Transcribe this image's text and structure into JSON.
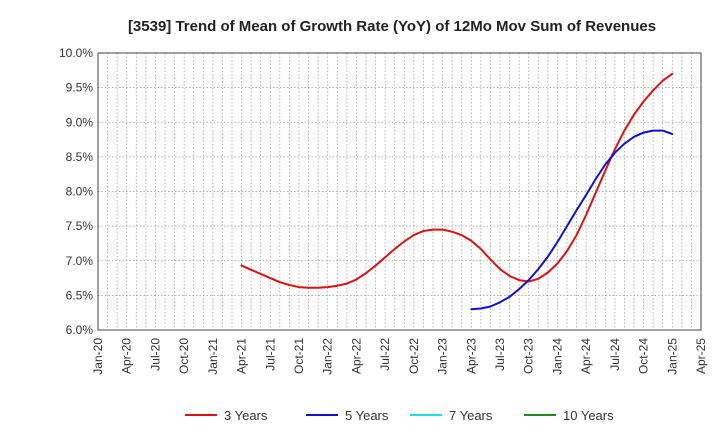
{
  "chart_data": {
    "type": "line",
    "title": "[3539]  Trend of Mean of Growth Rate (YoY) of 12Mo Mov Sum of Revenues",
    "xlabel": "",
    "ylabel": "",
    "ylim": [
      6.0,
      10.0
    ],
    "y_ticks": [
      "6.0%",
      "6.5%",
      "7.0%",
      "7.5%",
      "8.0%",
      "8.5%",
      "9.0%",
      "9.5%",
      "10.0%"
    ],
    "x_ticks": [
      "Jan-20",
      "Apr-20",
      "Jul-20",
      "Oct-20",
      "Jan-21",
      "Apr-21",
      "Jul-21",
      "Oct-21",
      "Jan-22",
      "Apr-22",
      "Jul-22",
      "Oct-22",
      "Jan-23",
      "Apr-23",
      "Jul-23",
      "Oct-23",
      "Jan-24",
      "Apr-24",
      "Jul-24",
      "Oct-24",
      "Jan-25",
      "Apr-25"
    ],
    "x_range_months": [
      0,
      63
    ],
    "grid": true,
    "legend_position": "bottom",
    "series": [
      {
        "name": "3 Years",
        "color": "#dd1111",
        "x": [
          15,
          16,
          17,
          18,
          19,
          20,
          21,
          22,
          23,
          24,
          25,
          26,
          27,
          28,
          29,
          30,
          31,
          32,
          33,
          34,
          35,
          36,
          37,
          38,
          39,
          40,
          41,
          42,
          43,
          44,
          45,
          46,
          47,
          48,
          49,
          50,
          51,
          52,
          53,
          54,
          55,
          56,
          57,
          58,
          59,
          60
        ],
        "values": [
          6.93,
          6.87,
          6.81,
          6.75,
          6.69,
          6.65,
          6.62,
          6.61,
          6.61,
          6.62,
          6.64,
          6.67,
          6.73,
          6.82,
          6.93,
          7.05,
          7.17,
          7.28,
          7.37,
          7.43,
          7.45,
          7.45,
          7.42,
          7.37,
          7.29,
          7.17,
          7.02,
          6.88,
          6.78,
          6.72,
          6.7,
          6.74,
          6.83,
          6.96,
          7.14,
          7.37,
          7.66,
          7.98,
          8.3,
          8.61,
          8.88,
          9.11,
          9.3,
          9.46,
          9.6,
          9.7
        ]
      },
      {
        "name": "5 Years",
        "color": "#1111cc",
        "x": [
          39,
          40,
          41,
          42,
          43,
          44,
          45,
          46,
          47,
          48,
          49,
          50,
          51,
          52,
          53,
          54,
          55,
          56,
          57,
          58,
          59,
          60
        ],
        "values": [
          6.3,
          6.31,
          6.34,
          6.4,
          6.48,
          6.59,
          6.72,
          6.88,
          7.06,
          7.27,
          7.5,
          7.73,
          7.95,
          8.18,
          8.39,
          8.56,
          8.69,
          8.79,
          8.85,
          8.88,
          8.88,
          8.83
        ]
      },
      {
        "name": "7 Years",
        "color": "#22ddee",
        "x": [],
        "values": []
      },
      {
        "name": "10 Years",
        "color": "#228822",
        "x": [],
        "values": []
      }
    ]
  }
}
